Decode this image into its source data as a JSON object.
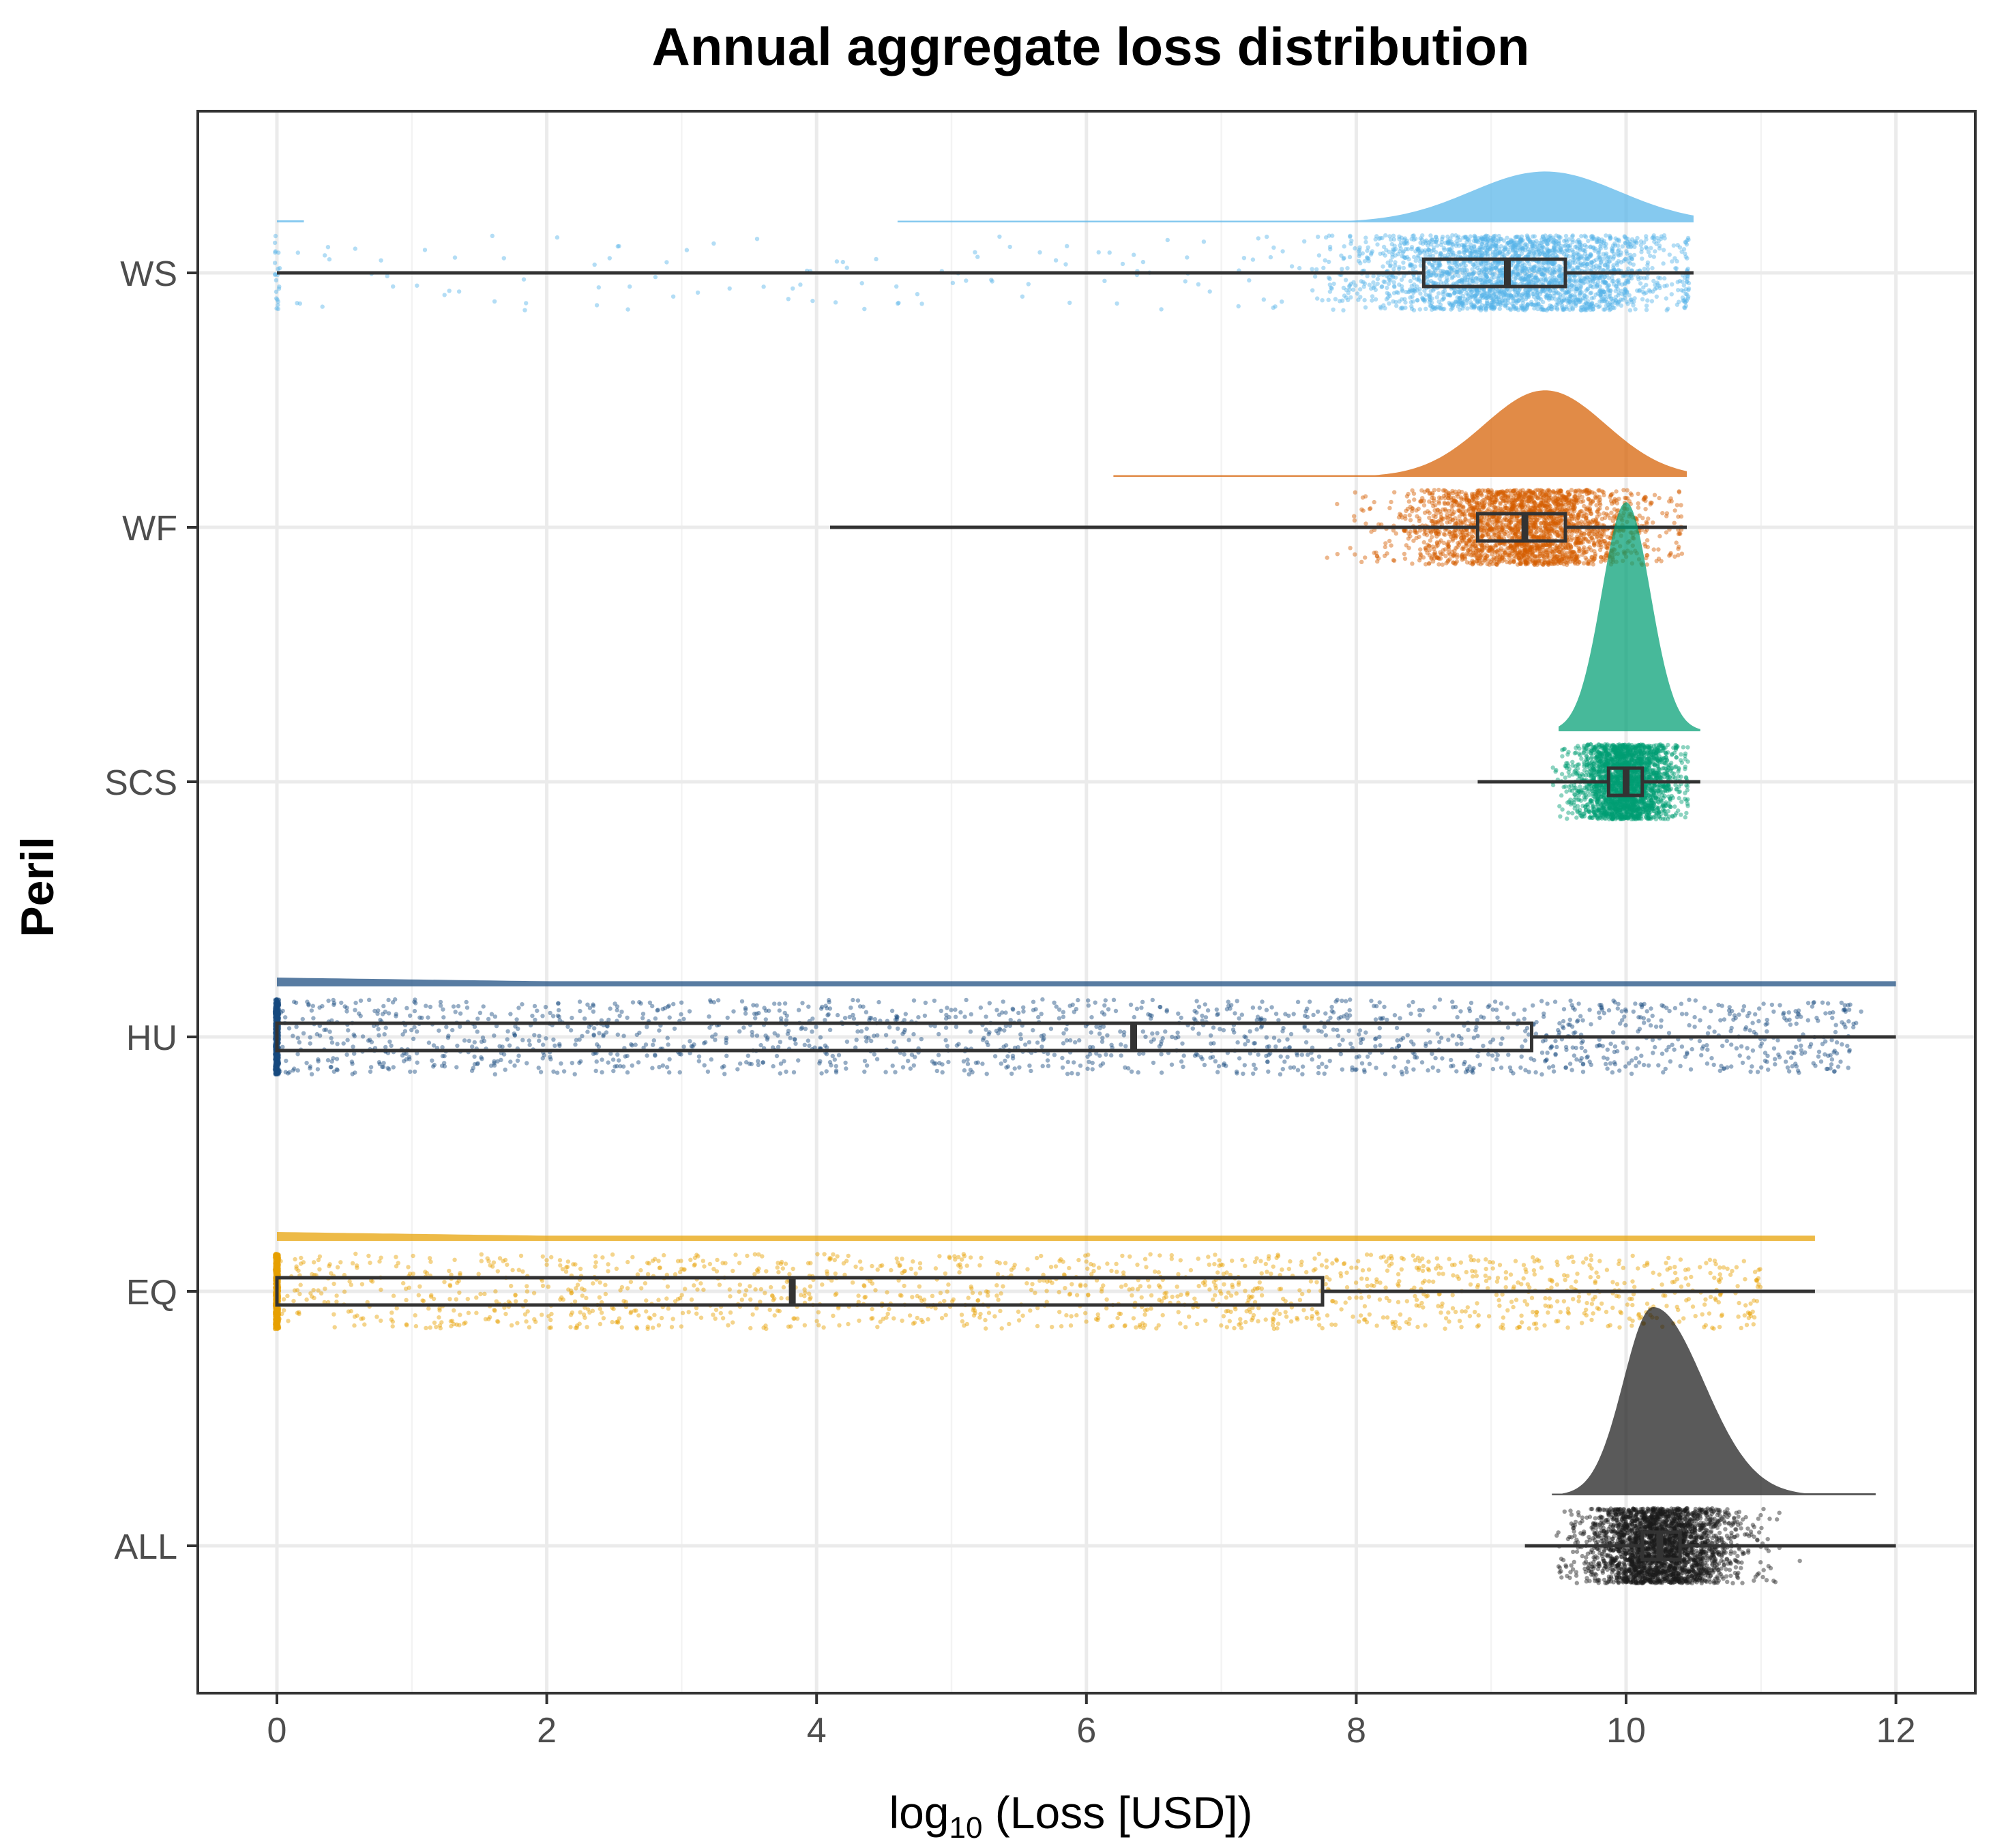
{
  "chart_data": {
    "type": "raincloud",
    "title": "Annual aggregate loss distribution",
    "xlabel": {
      "main": "log",
      "subscript": "10",
      "rest": " (Loss [USD])"
    },
    "ylabel": "Peril",
    "xlim": [
      -0.6,
      12.6
    ],
    "x_ticks": [
      0,
      2,
      4,
      6,
      8,
      10,
      12
    ],
    "grid": true,
    "categories": [
      "WS",
      "WF",
      "SCS",
      "HU",
      "EQ",
      "ALL"
    ],
    "series": [
      {
        "name": "WS",
        "color": "#56B4E9",
        "min": 0.0,
        "q1": 8.5,
        "median": 9.12,
        "q3": 9.55,
        "max": 10.5,
        "density": {
          "start": 4.6,
          "end": 10.5,
          "peak": 9.4,
          "spread": 0.55,
          "height": 0.2,
          "lowtail": [
            0.0,
            0.2
          ]
        },
        "points": {
          "mode": "mixed",
          "center": 9.2,
          "sd": 0.6,
          "lo": 0.0,
          "hi": 10.45,
          "n": 2600,
          "zero_frac": 0.01
        }
      },
      {
        "name": "WF",
        "color": "#D55E00",
        "min": 4.1,
        "q1": 8.9,
        "median": 9.25,
        "q3": 9.55,
        "max": 10.45,
        "density": {
          "start": 6.2,
          "end": 10.45,
          "peak": 9.4,
          "spread": 0.45,
          "height": 0.34
        },
        "points": {
          "mode": "normal",
          "center": 9.25,
          "sd": 0.45,
          "lo": 4.1,
          "hi": 10.4,
          "n": 2400
        }
      },
      {
        "name": "SCS",
        "color": "#009E73",
        "min": 8.9,
        "q1": 9.87,
        "median": 10.0,
        "q3": 10.12,
        "max": 10.55,
        "density": {
          "start": 9.5,
          "end": 10.55,
          "peak": 10.0,
          "spread": 0.18,
          "height": 0.9
        },
        "points": {
          "mode": "normal",
          "center": 10.0,
          "sd": 0.18,
          "lo": 8.9,
          "hi": 10.45,
          "n": 2400
        }
      },
      {
        "name": "HU",
        "color": "#174A7E",
        "min": 0.0,
        "q1": 0.0,
        "median": 6.35,
        "q3": 9.3,
        "max": 12.0,
        "density": {
          "start": 0.0,
          "end": 12.0,
          "peak": 0.0,
          "spread": 0.0,
          "height": 0.04,
          "flat": true
        },
        "points": {
          "mode": "uniform",
          "lo": 0.0,
          "hi": 11.75,
          "n": 2200,
          "zero_frac": 0.25
        }
      },
      {
        "name": "EQ",
        "color": "#E69F00",
        "min": 0.0,
        "q1": 0.0,
        "median": 3.82,
        "q3": 7.75,
        "max": 11.4,
        "density": {
          "start": 0.0,
          "end": 11.4,
          "peak": 0.0,
          "spread": 0.0,
          "height": 0.04,
          "flat": true
        },
        "points": {
          "mode": "uniform",
          "lo": 0.0,
          "hi": 11.0,
          "n": 2200,
          "zero_frac": 0.35
        }
      },
      {
        "name": "ALL",
        "color": "#1a1a1a",
        "min": 9.25,
        "q1": 10.12,
        "median": 10.25,
        "q3": 10.4,
        "max": 12.0,
        "density": {
          "start": 9.45,
          "end": 11.85,
          "peak": 10.2,
          "spread": 0.22,
          "height": 0.74,
          "righttail": true
        },
        "points": {
          "mode": "normal",
          "center": 10.25,
          "sd": 0.28,
          "lo": 9.5,
          "hi": 12.0,
          "n": 2600
        }
      }
    ]
  }
}
